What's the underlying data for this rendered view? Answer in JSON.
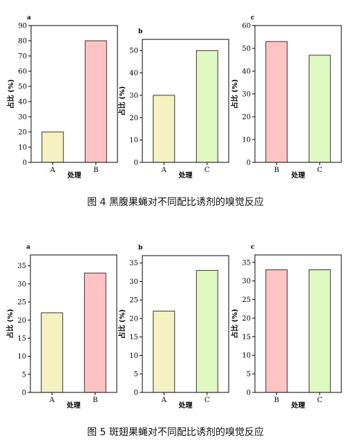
{
  "figures": [
    {
      "caption": "图 4 黑腹果蝇对不同配比诱剂的嗅觉反应",
      "chart_data": [
        {
          "type": "bar",
          "panel_label": "a",
          "categories": [
            "A",
            "B"
          ],
          "values": [
            20,
            80
          ],
          "bar_colors": [
            "#f5f1c0",
            "#ffc3c3"
          ],
          "ylabel": "占比 (%)",
          "xlabel": "处理",
          "ylim": [
            0,
            90
          ],
          "yticks": [
            0,
            10,
            20,
            30,
            40,
            50,
            60,
            70,
            80,
            90
          ],
          "grid": false
        },
        {
          "type": "bar",
          "panel_label": "b",
          "categories": [
            "A",
            "C"
          ],
          "values": [
            30,
            50
          ],
          "bar_colors": [
            "#f5f1c0",
            "#dff7c0"
          ],
          "ylabel": "占比 (%)",
          "xlabel": "处理",
          "ylim": [
            0,
            55
          ],
          "yticks": [
            0,
            10,
            20,
            30,
            40,
            50
          ],
          "grid": false
        },
        {
          "type": "bar",
          "panel_label": "c",
          "categories": [
            "B",
            "C"
          ],
          "values": [
            53,
            47
          ],
          "bar_colors": [
            "#ffc3c3",
            "#dff7c0"
          ],
          "ylabel": "占比 (%)",
          "xlabel": "处理",
          "ylim": [
            0,
            60
          ],
          "yticks": [
            0,
            10,
            20,
            30,
            40,
            50,
            60
          ],
          "grid": false
        }
      ]
    },
    {
      "caption": "图 5 斑翅果蝇对不同配比诱剂的嗅觉反应",
      "chart_data": [
        {
          "type": "bar",
          "panel_label": "a",
          "categories": [
            "A",
            "B"
          ],
          "values": [
            22,
            33
          ],
          "bar_colors": [
            "#f5f1c0",
            "#ffc3c3"
          ],
          "ylabel": "占比 (%)",
          "xlabel": "处理",
          "ylim": [
            0,
            38
          ],
          "yticks": [
            0,
            5,
            10,
            15,
            20,
            25,
            30,
            35
          ],
          "grid": false
        },
        {
          "type": "bar",
          "panel_label": "b",
          "categories": [
            "A",
            "C"
          ],
          "values": [
            22,
            33
          ],
          "bar_colors": [
            "#f5f1c0",
            "#dff7c0"
          ],
          "ylabel": "占比 (%)",
          "xlabel": "处理",
          "ylim": [
            0,
            37
          ],
          "yticks": [
            0,
            5,
            10,
            15,
            20,
            25,
            30,
            35
          ],
          "grid": false
        },
        {
          "type": "bar",
          "panel_label": "c",
          "categories": [
            "B",
            "C"
          ],
          "values": [
            33,
            33
          ],
          "bar_colors": [
            "#ffc3c3",
            "#dff7c0"
          ],
          "ylabel": "占比 (%)",
          "xlabel": "处理",
          "ylim": [
            0,
            37
          ],
          "yticks": [
            0,
            5,
            10,
            15,
            20,
            25,
            30,
            35
          ],
          "grid": false
        }
      ]
    }
  ]
}
